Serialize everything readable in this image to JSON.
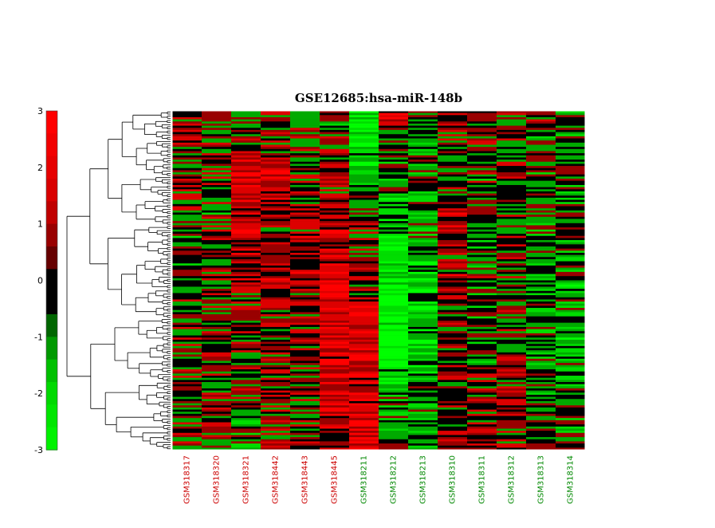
{
  "chart_data": {
    "type": "heatmap",
    "title": "GSE12685:hsa-miR-148b",
    "colorbar": {
      "ticks": [
        3,
        2,
        1,
        0,
        -1,
        -2,
        -3
      ],
      "range": [
        -3,
        3
      ],
      "low_color": "#00ff00",
      "mid_color": "#000000",
      "high_color": "#ff0000"
    },
    "columns": [
      {
        "label": "GSM318317",
        "group": "red"
      },
      {
        "label": "GSM318320",
        "group": "red"
      },
      {
        "label": "GSM318321",
        "group": "red"
      },
      {
        "label": "GSM318442",
        "group": "red"
      },
      {
        "label": "GSM318443",
        "group": "red"
      },
      {
        "label": "GSM318445",
        "group": "red"
      },
      {
        "label": "GSM318211",
        "group": "green"
      },
      {
        "label": "GSM318212",
        "group": "green"
      },
      {
        "label": "GSM318213",
        "group": "green"
      },
      {
        "label": "GSM318310",
        "group": "green"
      },
      {
        "label": "GSM318311",
        "group": "green"
      },
      {
        "label": "GSM318312",
        "group": "green"
      },
      {
        "label": "GSM318313",
        "group": "green"
      },
      {
        "label": "GSM318314",
        "group": "green"
      }
    ],
    "row_count": 160,
    "column_trend": [
      [
        0.6,
        0.3,
        -0.1,
        -0.2,
        0.3,
        0.0,
        0.2
      ],
      [
        0.2,
        0.3,
        0.1,
        0.4,
        0.2,
        0.1,
        0.3
      ],
      [
        -0.5,
        1.8,
        1.2,
        1.2,
        0.2,
        0.2,
        -0.6
      ],
      [
        0.2,
        1.6,
        0.8,
        1.0,
        0.6,
        0.4,
        0.3
      ],
      [
        0.2,
        0.3,
        0.9,
        1.0,
        0.9,
        0.2,
        0.3
      ],
      [
        -0.3,
        0.5,
        1.2,
        2.2,
        2.3,
        1.8,
        1.2
      ],
      [
        -2.4,
        -1.5,
        0.3,
        0.6,
        2.0,
        1.5,
        2.2
      ],
      [
        1.4,
        -0.6,
        -1.2,
        -2.4,
        -2.6,
        -0.8,
        -0.2
      ],
      [
        0.2,
        -0.6,
        -0.6,
        -1.6,
        -1.8,
        -0.6,
        -0.2
      ],
      [
        0.3,
        0.3,
        1.4,
        0.8,
        0.6,
        0.6,
        0.3
      ],
      [
        0.2,
        0.1,
        -0.2,
        0.0,
        -0.3,
        0.3,
        0.4
      ],
      [
        0.3,
        0.3,
        0.2,
        0.2,
        0.3,
        1.0,
        0.8
      ],
      [
        0.1,
        -0.2,
        -0.4,
        -0.8,
        -0.9,
        -0.4,
        0.0
      ],
      [
        -0.2,
        -0.5,
        -0.5,
        -0.9,
        -1.2,
        -0.5,
        0.0
      ]
    ]
  },
  "colors": {
    "group_red": "#cc0000",
    "group_green": "#008800"
  }
}
